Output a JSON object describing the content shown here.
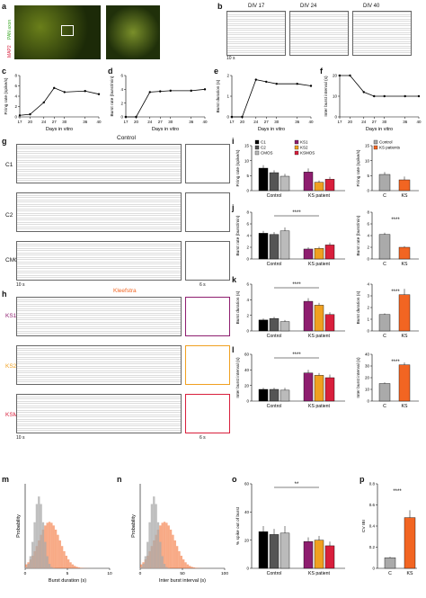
{
  "letters": {
    "a": "a",
    "b": "b",
    "c": "c",
    "d": "d",
    "e": "e",
    "f": "f",
    "g": "g",
    "h": "h",
    "i": "i",
    "j": "j",
    "k": "k",
    "l": "l",
    "m": "m",
    "n": "n",
    "o": "o",
    "p": "p"
  },
  "micro": {
    "label_red": "MAP2",
    "label_green": "PAN axon"
  },
  "raster_b": {
    "divs": [
      "DIV 17",
      "DIV 24",
      "DIV 40"
    ],
    "scale": "10 s"
  },
  "g": {
    "title": "Control",
    "conds": [
      "C1",
      "C2",
      "CMOS"
    ],
    "scale_left": "10 s",
    "scale_right": "6 s"
  },
  "h": {
    "title": "Kleefstra",
    "conds": [
      "KS1",
      "KS2",
      "KSMOS"
    ],
    "scale_left": "10 s",
    "scale_right": "6 s"
  },
  "colors": {
    "C1": "#000000",
    "C2": "#555555",
    "CMOS": "#bbbbbb",
    "KS1": "#8e1e6f",
    "KS2": "#f0a020",
    "KSMOS": "#d81f3c",
    "control": "#aaaaaa",
    "ks": "#f26522"
  },
  "chart_data": [
    {
      "panel": "c",
      "type": "line",
      "x": [
        17,
        20,
        24,
        27,
        30,
        36,
        40
      ],
      "y": [
        0.3,
        0.5,
        2.8,
        5.6,
        4.8,
        5.0,
        4.4
      ],
      "xlabel": "Days in vitro",
      "ylabel": "Firing rate (spike/s)",
      "xlim": [
        17,
        40
      ],
      "ylim": [
        0,
        8
      ],
      "xticks": [
        17,
        20,
        24,
        27,
        30,
        36,
        40
      ],
      "yticks": [
        0,
        2,
        4,
        6,
        8
      ]
    },
    {
      "panel": "d",
      "type": "line",
      "x": [
        17,
        20,
        24,
        27,
        30,
        36,
        40
      ],
      "y": [
        0,
        0,
        3.6,
        3.7,
        3.8,
        3.8,
        4.0
      ],
      "xlabel": "Days in vitro",
      "ylabel": "Burst rate (burst/min)",
      "xlim": [
        17,
        40
      ],
      "ylim": [
        0,
        6
      ],
      "xticks": [
        17,
        20,
        24,
        27,
        30,
        36,
        40
      ],
      "yticks": [
        0,
        2,
        4,
        6
      ]
    },
    {
      "panel": "e",
      "type": "line",
      "x": [
        17,
        20,
        24,
        27,
        30,
        36,
        40
      ],
      "y": [
        0,
        0,
        1.8,
        1.7,
        1.6,
        1.6,
        1.5
      ],
      "xlabel": "Days in vitro",
      "ylabel": "Burst duration (s)",
      "xlim": [
        17,
        40
      ],
      "ylim": [
        0,
        2
      ],
      "xticks": [
        17,
        20,
        24,
        27,
        30,
        36,
        40
      ],
      "yticks": [
        0,
        1,
        2
      ]
    },
    {
      "panel": "f",
      "type": "line",
      "x": [
        17,
        20,
        24,
        27,
        30,
        36,
        40
      ],
      "y": [
        20,
        20,
        12,
        10,
        10,
        10,
        10
      ],
      "xlabel": "Days in vitro",
      "ylabel": "Inter burst interval (s)",
      "xlim": [
        17,
        40
      ],
      "ylim": [
        0,
        20
      ],
      "xticks": [
        17,
        20,
        24,
        27,
        30,
        36,
        40
      ],
      "yticks": [
        0,
        10,
        20
      ]
    },
    {
      "panel": "i",
      "type": "bar",
      "ylabel": "Firing rate (spike/s)",
      "ylim": [
        0,
        15
      ],
      "yticks": [
        0,
        5,
        10,
        15
      ],
      "groups": [
        "Control",
        "KS patient"
      ],
      "values": [
        7.5,
        6.0,
        4.8,
        6.2,
        2.8,
        3.8
      ],
      "errors": [
        1.0,
        0.8,
        0.8,
        1.2,
        0.6,
        0.8
      ],
      "legend": [
        "C1",
        "C2",
        "CMOS",
        "KS1",
        "KS2",
        "KSMOS"
      ]
    },
    {
      "panel": "i2",
      "type": "bar",
      "ylabel": "Firing rate (spike/s)",
      "ylim": [
        0,
        15
      ],
      "yticks": [
        0,
        5,
        10,
        15
      ],
      "categories": [
        "C",
        "KS"
      ],
      "values": [
        5.4,
        3.6
      ],
      "errors": [
        0.8,
        1.1
      ],
      "legend": [
        "Control",
        "KS patients"
      ]
    },
    {
      "panel": "j",
      "type": "bar",
      "ylabel": "Burst rate (burst/min)",
      "ylim": [
        0,
        8
      ],
      "yticks": [
        0,
        2,
        4,
        6,
        8
      ],
      "groups": [
        "Control",
        "KS patient"
      ],
      "values": [
        4.4,
        4.2,
        4.8,
        1.7,
        1.8,
        2.4
      ],
      "errors": [
        0.4,
        0.4,
        0.6,
        0.3,
        0.3,
        0.4
      ],
      "significance": "****"
    },
    {
      "panel": "j2",
      "type": "bar",
      "ylabel": "Burst rate (burst/min)",
      "ylim": [
        0,
        8
      ],
      "yticks": [
        0,
        2,
        4,
        6,
        8
      ],
      "categories": [
        "C",
        "KS"
      ],
      "values": [
        4.2,
        2.0
      ],
      "errors": [
        0.3,
        0.2
      ],
      "significance": "****"
    },
    {
      "panel": "k",
      "type": "bar",
      "ylabel": "Burst duration (s)",
      "ylim": [
        0,
        6
      ],
      "yticks": [
        0,
        2,
        4,
        6
      ],
      "groups": [
        "Control",
        "KS patient"
      ],
      "values": [
        1.4,
        1.6,
        1.2,
        3.8,
        3.3,
        2.1
      ],
      "errors": [
        0.2,
        0.2,
        0.2,
        0.4,
        0.3,
        0.3
      ],
      "significance": "****"
    },
    {
      "panel": "k2",
      "type": "bar",
      "ylabel": "Burst duration (s)",
      "ylim": [
        0,
        4
      ],
      "yticks": [
        0,
        1,
        2,
        3,
        4
      ],
      "categories": [
        "C",
        "KS"
      ],
      "values": [
        1.4,
        3.1
      ],
      "errors": [
        0.1,
        0.5
      ],
      "significance": "****"
    },
    {
      "panel": "l",
      "type": "bar",
      "ylabel": "Inter burst interval (s)",
      "ylim": [
        0,
        60
      ],
      "yticks": [
        0,
        20,
        40,
        60
      ],
      "groups": [
        "Control",
        "KS patient"
      ],
      "values": [
        15,
        15,
        14,
        36,
        33,
        30
      ],
      "errors": [
        2,
        2,
        3,
        4,
        3,
        4
      ],
      "significance": "****"
    },
    {
      "panel": "l2",
      "type": "bar",
      "ylabel": "Inter burst interval (s)",
      "ylim": [
        0,
        40
      ],
      "yticks": [
        0,
        10,
        20,
        30,
        40
      ],
      "categories": [
        "C",
        "KS"
      ],
      "values": [
        15,
        31
      ],
      "errors": [
        1,
        2
      ],
      "significance": "****"
    },
    {
      "panel": "m",
      "type": "histogram",
      "xlabel": "Burst duration (s)",
      "ylabel": "Probability",
      "xlim": [
        0,
        10
      ],
      "xticks": [
        0,
        5,
        10
      ]
    },
    {
      "panel": "n",
      "type": "histogram",
      "xlabel": "Inter burst interval (s)",
      "ylabel": "Probability",
      "xlim": [
        0,
        100
      ],
      "xticks": [
        0,
        50,
        100
      ]
    },
    {
      "panel": "o",
      "type": "bar",
      "ylabel": "% spike out of burst",
      "ylim": [
        0,
        60
      ],
      "yticks": [
        0,
        20,
        40,
        60
      ],
      "groups": [
        "Control",
        "KS patient"
      ],
      "values": [
        26,
        24,
        25,
        19,
        20,
        16
      ],
      "errors": [
        4,
        4,
        5,
        3,
        3,
        3
      ],
      "significance": "**"
    },
    {
      "panel": "p",
      "type": "bar",
      "ylabel": "CV IBI",
      "ylim": [
        0,
        0.8
      ],
      "yticks": [
        0,
        0.2,
        0.4,
        0.6,
        0.8
      ],
      "categories": [
        "C",
        "KS"
      ],
      "values": [
        0.1,
        0.48
      ],
      "errors": [
        0.01,
        0.07
      ],
      "significance": "****"
    }
  ]
}
